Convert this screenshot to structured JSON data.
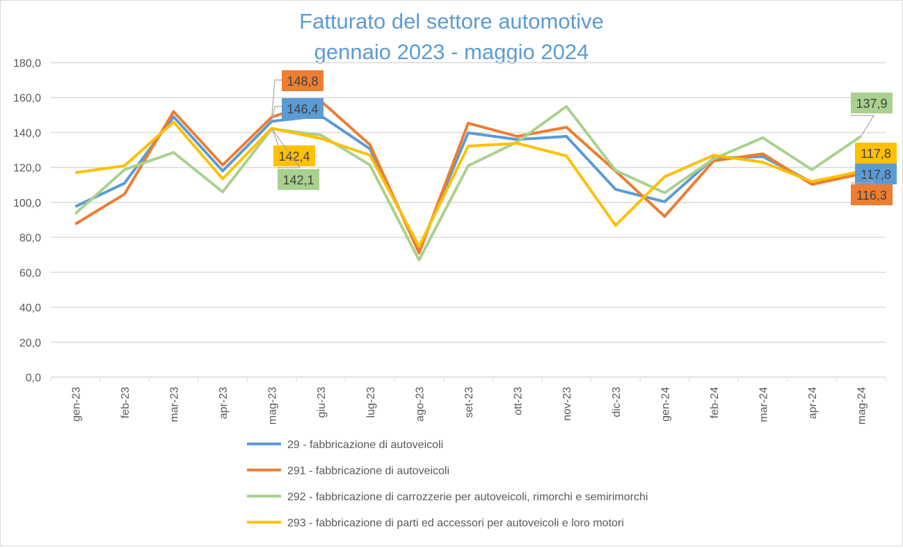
{
  "chart_data": {
    "type": "line",
    "title": "Fatturato del settore automotive",
    "subtitle": "gennaio 2023 - maggio 2024",
    "categories": [
      "gen-23",
      "feb-23",
      "mar-23",
      "apr-23",
      "mag-23",
      "giu-23",
      "lug-23",
      "ago-23",
      "set-23",
      "ott-23",
      "nov-23",
      "dic-23",
      "gen-24",
      "feb-24",
      "mar-24",
      "apr-24",
      "mag-24"
    ],
    "ylim": [
      0,
      180
    ],
    "yticks": [
      "0,0",
      "20,0",
      "40,0",
      "60,0",
      "80,0",
      "100,0",
      "120,0",
      "140,0",
      "160,0",
      "180,0"
    ],
    "grid": true,
    "legend_position": "bottom",
    "series": [
      {
        "name": "29 - fabbricazione di autoveicoli",
        "color": "#5B9BD5",
        "values": [
          97.6,
          111.0,
          149.0,
          118.0,
          146.4,
          149.6,
          130.6,
          73.0,
          139.8,
          136.0,
          137.8,
          107.5,
          100.4,
          125.4,
          126.2,
          111.5,
          117.8
        ]
      },
      {
        "name": "291 - fabbricazione di autoveicoli",
        "color": "#ED7D31",
        "values": [
          87.6,
          104.7,
          152.0,
          121.4,
          148.8,
          158.0,
          133.0,
          71.0,
          145.3,
          137.8,
          143.0,
          117.9,
          92.0,
          123.8,
          127.8,
          110.3,
          116.3
        ]
      },
      {
        "name": "292 - fabbricazione di carrozzerie per autoveicoli, rimorchi e semirimorchi",
        "color": "#A9D18E",
        "values": [
          93.6,
          118.7,
          128.6,
          106.0,
          142.1,
          138.6,
          121.4,
          67.0,
          121.0,
          134.6,
          154.9,
          118.3,
          105.5,
          125.0,
          137.0,
          118.7,
          137.9
        ]
      },
      {
        "name": "293 - fabbricazione di parti ed accessori per autoveicoli e loro motori",
        "color": "#FFC000",
        "values": [
          117.0,
          121.0,
          146.0,
          113.5,
          142.4,
          136.6,
          127.0,
          74.8,
          132.2,
          133.8,
          126.6,
          86.8,
          114.7,
          127.0,
          123.0,
          111.9,
          117.8
        ]
      }
    ],
    "data_labels": [
      {
        "series": 1,
        "category": "mag-23",
        "text": "148,8"
      },
      {
        "series": 0,
        "category": "mag-23",
        "text": "146,4"
      },
      {
        "series": 3,
        "category": "mag-23",
        "text": "142,4"
      },
      {
        "series": 2,
        "category": "mag-23",
        "text": "142,1"
      },
      {
        "series": 2,
        "category": "mag-24",
        "text": "137,9"
      },
      {
        "series": 3,
        "category": "mag-24",
        "text": "117,8"
      },
      {
        "series": 0,
        "category": "mag-24",
        "text": "117,8"
      },
      {
        "series": 1,
        "category": "mag-24",
        "text": "116,3"
      }
    ]
  }
}
